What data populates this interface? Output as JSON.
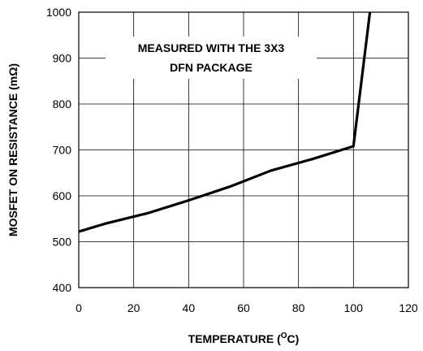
{
  "chart_data": {
    "type": "line",
    "title": "",
    "xlabel": "TEMPERATURE (",
    "xlabel_sup": "O",
    "xlabel_unit": "C)",
    "ylabel": "MOSFET ON RESISTANCE (mΩ)",
    "xlim": [
      0,
      120
    ],
    "ylim": [
      400,
      1000
    ],
    "x_ticks": [
      0,
      20,
      40,
      60,
      80,
      100,
      120
    ],
    "y_ticks": [
      400,
      500,
      600,
      700,
      800,
      900,
      1000
    ],
    "x_tick_labels": [
      "0",
      "20",
      "40",
      "60",
      "80",
      "100",
      "120"
    ],
    "y_tick_labels": [
      "400",
      "500",
      "600",
      "700",
      "800",
      "900",
      "1000"
    ],
    "grid": true,
    "annotation": [
      "MEASURED WITH THE 3X3",
      "DFN PACKAGE"
    ],
    "series": [
      {
        "x": [
          0,
          10,
          25,
          40,
          55,
          70,
          85,
          100,
          106
        ],
        "y": [
          522,
          540,
          562,
          590,
          620,
          655,
          680,
          708,
          1000
        ],
        "color": "#000000"
      }
    ]
  }
}
